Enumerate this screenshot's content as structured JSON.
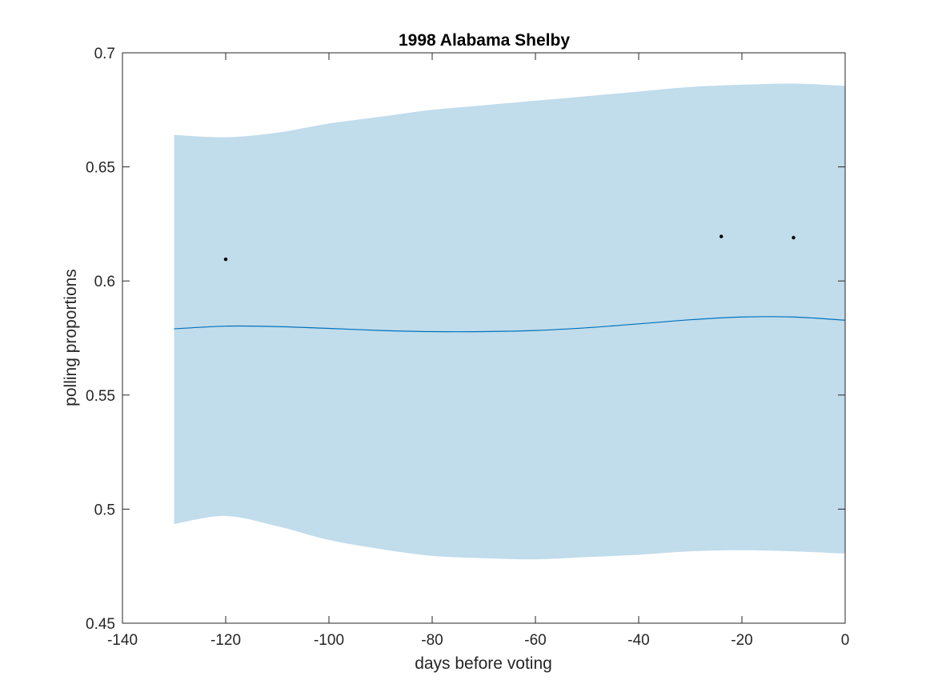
{
  "chart_data": {
    "type": "line",
    "title": "1998 Alabama Shelby",
    "xlabel": "days before voting",
    "ylabel": "polling proportions",
    "xlim": [
      -140,
      0
    ],
    "ylim": [
      0.45,
      0.7
    ],
    "xticks": [
      -140,
      -120,
      -100,
      -80,
      -60,
      -40,
      -20,
      0
    ],
    "xtick_labels": [
      "-140",
      "-120",
      "-100",
      "-80",
      "-60",
      "-40",
      "-20",
      "0"
    ],
    "yticks": [
      0.45,
      0.5,
      0.55,
      0.6,
      0.65,
      0.7
    ],
    "ytick_labels": [
      "0.45",
      "0.5",
      "0.55",
      "0.6",
      "0.65",
      "0.7"
    ],
    "grid": false,
    "band": {
      "x": [
        -130,
        -120,
        -110,
        -100,
        -90,
        -80,
        -70,
        -60,
        -50,
        -40,
        -30,
        -20,
        -10,
        0
      ],
      "upper": [
        0.664,
        0.663,
        0.665,
        0.669,
        0.672,
        0.675,
        0.677,
        0.679,
        0.681,
        0.683,
        0.685,
        0.686,
        0.6865,
        0.6855
      ],
      "lower": [
        0.4935,
        0.497,
        0.4925,
        0.4865,
        0.4825,
        0.4795,
        0.4785,
        0.478,
        0.479,
        0.48,
        0.4815,
        0.482,
        0.4815,
        0.4805
      ],
      "color": "#c1dceb"
    },
    "trend": {
      "x": [
        -130,
        -120,
        -110,
        -100,
        -90,
        -80,
        -70,
        -60,
        -50,
        -40,
        -30,
        -20,
        -10,
        0
      ],
      "values": [
        0.579,
        0.5802,
        0.58,
        0.5792,
        0.5783,
        0.5778,
        0.5778,
        0.5783,
        0.5795,
        0.5812,
        0.583,
        0.5842,
        0.5842,
        0.5828
      ],
      "color": "#0072bd"
    },
    "points": {
      "x": [
        -120,
        -24,
        -10
      ],
      "y": [
        0.6095,
        0.6195,
        0.619
      ],
      "color": "#000000"
    }
  }
}
